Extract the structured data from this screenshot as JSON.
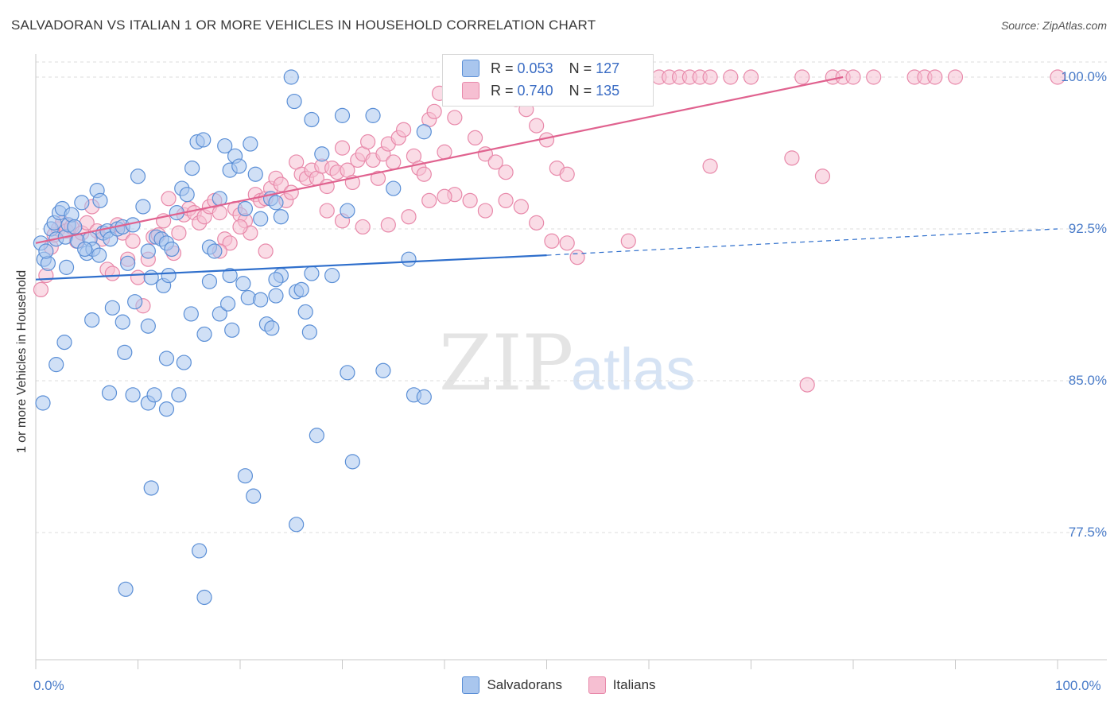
{
  "title": "SALVADORAN VS ITALIAN 1 OR MORE VEHICLES IN HOUSEHOLD CORRELATION CHART",
  "source": "Source: ZipAtlas.com",
  "watermark": {
    "zip": "ZIP",
    "atlas": "atlas"
  },
  "colors": {
    "blue_fill": "#a9c6ee",
    "blue_stroke": "#5b8fd6",
    "blue_line": "#2f6fcc",
    "pink_fill": "#f6bfd2",
    "pink_stroke": "#e889aa",
    "pink_line": "#e0628f",
    "grid": "#dddddd",
    "tick_text": "#4a7cc9"
  },
  "legend": {
    "rows": [
      {
        "r_label": "R =",
        "r_value": "0.053",
        "n_label": "N =",
        "n_value": "127"
      },
      {
        "r_label": "R =",
        "r_value": "0.740",
        "n_label": "N =",
        "n_value": "135"
      }
    ]
  },
  "bottom_legend": [
    "Salvadorans",
    "Italians"
  ],
  "chart_data": {
    "type": "scatter",
    "title": "SALVADORAN VS ITALIAN 1 OR MORE VEHICLES IN HOUSEHOLD CORRELATION CHART",
    "xlabel": "",
    "ylabel": "1 or more Vehicles in Household",
    "xlim": [
      0,
      100
    ],
    "ylim": [
      70.5,
      101.2
    ],
    "x_tick_labels": [
      "0.0%",
      "100.0%"
    ],
    "y_ticks": [
      {
        "value": 100.0,
        "label": "100.0%"
      },
      {
        "value": 92.5,
        "label": "92.5%"
      },
      {
        "value": 85.0,
        "label": "85.0%"
      },
      {
        "value": 77.5,
        "label": "77.5%"
      }
    ],
    "grid": true,
    "series": [
      {
        "name": "Salvadorans",
        "color": "blue",
        "R": 0.053,
        "N": 127,
        "trend": {
          "x0": 0,
          "y0": 90.0,
          "x1": 50,
          "y1": 91.2,
          "dash_to_x": 100,
          "dash_to_y": 92.5
        },
        "points": [
          [
            0.5,
            91.8
          ],
          [
            0.8,
            91.0
          ],
          [
            1.2,
            90.8
          ],
          [
            1.5,
            92.5
          ],
          [
            1.8,
            92.8
          ],
          [
            2.0,
            92.0
          ],
          [
            2.3,
            93.3
          ],
          [
            2.6,
            93.5
          ],
          [
            2.9,
            92.1
          ],
          [
            3.2,
            92.7
          ],
          [
            3.5,
            93.2
          ],
          [
            3.8,
            92.6
          ],
          [
            4.1,
            91.9
          ],
          [
            4.5,
            93.8
          ],
          [
            5.0,
            91.3
          ],
          [
            5.3,
            92.0
          ],
          [
            5.6,
            91.5
          ],
          [
            6.0,
            94.4
          ],
          [
            6.3,
            93.9
          ],
          [
            6.6,
            92.3
          ],
          [
            7.0,
            92.4
          ],
          [
            7.3,
            92.0
          ],
          [
            8.0,
            92.5
          ],
          [
            8.5,
            92.6
          ],
          [
            9.0,
            90.8
          ],
          [
            9.5,
            92.7
          ],
          [
            10.0,
            95.1
          ],
          [
            10.5,
            93.6
          ],
          [
            11.0,
            91.4
          ],
          [
            11.3,
            90.1
          ],
          [
            11.8,
            92.1
          ],
          [
            12.3,
            92.0
          ],
          [
            12.8,
            91.8
          ],
          [
            13.3,
            91.5
          ],
          [
            13.8,
            93.3
          ],
          [
            14.3,
            94.5
          ],
          [
            14.8,
            94.2
          ],
          [
            15.3,
            95.5
          ],
          [
            15.8,
            96.8
          ],
          [
            16.4,
            96.9
          ],
          [
            17.0,
            91.6
          ],
          [
            17.5,
            91.4
          ],
          [
            18.0,
            94.0
          ],
          [
            18.5,
            96.6
          ],
          [
            19.0,
            95.4
          ],
          [
            19.5,
            96.1
          ],
          [
            19.9,
            95.6
          ],
          [
            20.5,
            93.5
          ],
          [
            21.0,
            96.7
          ],
          [
            21.5,
            95.2
          ],
          [
            22.0,
            93.0
          ],
          [
            23.0,
            94.0
          ],
          [
            23.5,
            93.8
          ],
          [
            24.0,
            93.1
          ],
          [
            25.0,
            100.0
          ],
          [
            25.3,
            98.8
          ],
          [
            27.0,
            97.9
          ],
          [
            28.0,
            96.2
          ],
          [
            30.0,
            98.1
          ],
          [
            30.5,
            93.4
          ],
          [
            33.0,
            98.1
          ],
          [
            35.0,
            94.5
          ],
          [
            38.0,
            97.3
          ],
          [
            7.5,
            88.6
          ],
          [
            9.7,
            88.9
          ],
          [
            11.0,
            87.7
          ],
          [
            8.5,
            87.9
          ],
          [
            8.7,
            86.4
          ],
          [
            5.5,
            88.0
          ],
          [
            2.8,
            86.9
          ],
          [
            2.0,
            85.8
          ],
          [
            0.7,
            83.9
          ],
          [
            7.2,
            84.4
          ],
          [
            9.5,
            84.3
          ],
          [
            11.0,
            83.9
          ],
          [
            11.6,
            84.3
          ],
          [
            12.8,
            86.1
          ],
          [
            14.5,
            85.9
          ],
          [
            14.0,
            84.3
          ],
          [
            12.8,
            83.6
          ],
          [
            15.2,
            88.3
          ],
          [
            16.5,
            87.3
          ],
          [
            18.0,
            88.3
          ],
          [
            18.8,
            88.8
          ],
          [
            19.2,
            87.5
          ],
          [
            20.3,
            89.8
          ],
          [
            20.8,
            89.1
          ],
          [
            22.0,
            89.0
          ],
          [
            22.6,
            87.8
          ],
          [
            23.1,
            87.6
          ],
          [
            23.5,
            89.2
          ],
          [
            24.0,
            90.2
          ],
          [
            25.5,
            89.4
          ],
          [
            26.4,
            88.4
          ],
          [
            26.8,
            87.4
          ],
          [
            27.0,
            90.3
          ],
          [
            30.5,
            85.4
          ],
          [
            34.0,
            85.5
          ],
          [
            37.0,
            84.3
          ],
          [
            38.0,
            84.2
          ],
          [
            36.5,
            91.0
          ],
          [
            27.5,
            82.3
          ],
          [
            31.0,
            81.0
          ],
          [
            20.5,
            80.3
          ],
          [
            21.3,
            79.3
          ],
          [
            11.3,
            79.7
          ],
          [
            25.5,
            77.9
          ],
          [
            16.0,
            76.6
          ],
          [
            8.8,
            74.7
          ],
          [
            16.5,
            74.3
          ],
          [
            12.5,
            89.7
          ],
          [
            13.0,
            90.2
          ],
          [
            17.0,
            89.9
          ],
          [
            19.0,
            90.2
          ],
          [
            23.5,
            90.0
          ],
          [
            26.0,
            89.5
          ],
          [
            6.2,
            91.2
          ],
          [
            4.8,
            91.5
          ],
          [
            3.0,
            90.6
          ],
          [
            1.0,
            91.4
          ],
          [
            29.0,
            90.2
          ]
        ]
      },
      {
        "name": "Italians",
        "color": "pink",
        "R": 0.74,
        "N": 135,
        "trend": {
          "x0": 0,
          "y0": 91.8,
          "x1": 79,
          "y1": 100.0
        },
        "points": [
          [
            0.5,
            89.5
          ],
          [
            1.0,
            90.2
          ],
          [
            1.5,
            91.6
          ],
          [
            1.8,
            92.2
          ],
          [
            2.2,
            92.5
          ],
          [
            2.6,
            92.8
          ],
          [
            3.0,
            92.4
          ],
          [
            3.5,
            92.6
          ],
          [
            4.0,
            91.9
          ],
          [
            4.5,
            92.3
          ],
          [
            5.0,
            92.8
          ],
          [
            5.5,
            93.6
          ],
          [
            6.0,
            92.4
          ],
          [
            6.5,
            92.0
          ],
          [
            7.0,
            90.5
          ],
          [
            7.5,
            90.3
          ],
          [
            8.0,
            92.7
          ],
          [
            8.5,
            92.3
          ],
          [
            9.0,
            91.0
          ],
          [
            9.5,
            91.9
          ],
          [
            10.0,
            90.1
          ],
          [
            10.5,
            88.7
          ],
          [
            11.0,
            91.0
          ],
          [
            11.5,
            92.1
          ],
          [
            12.0,
            92.2
          ],
          [
            12.5,
            92.9
          ],
          [
            13.0,
            94.0
          ],
          [
            13.5,
            91.3
          ],
          [
            14.0,
            92.3
          ],
          [
            14.5,
            93.2
          ],
          [
            15.0,
            93.5
          ],
          [
            15.5,
            93.3
          ],
          [
            16.0,
            92.8
          ],
          [
            16.5,
            93.1
          ],
          [
            17.0,
            93.6
          ],
          [
            17.5,
            93.9
          ],
          [
            18.0,
            93.3
          ],
          [
            18.5,
            92.0
          ],
          [
            19.0,
            91.8
          ],
          [
            19.5,
            93.5
          ],
          [
            20.0,
            93.2
          ],
          [
            20.5,
            92.9
          ],
          [
            21.0,
            92.3
          ],
          [
            21.5,
            94.2
          ],
          [
            22.0,
            93.9
          ],
          [
            22.5,
            94.0
          ],
          [
            23.0,
            94.5
          ],
          [
            23.5,
            95.0
          ],
          [
            24.0,
            94.7
          ],
          [
            24.5,
            93.9
          ],
          [
            25.0,
            94.3
          ],
          [
            25.5,
            95.8
          ],
          [
            26.0,
            95.2
          ],
          [
            26.5,
            95.0
          ],
          [
            27.0,
            95.4
          ],
          [
            27.5,
            95.0
          ],
          [
            28.0,
            95.6
          ],
          [
            28.5,
            94.6
          ],
          [
            29.0,
            95.5
          ],
          [
            29.5,
            95.3
          ],
          [
            30.0,
            96.5
          ],
          [
            30.5,
            95.4
          ],
          [
            31.0,
            94.8
          ],
          [
            31.5,
            95.9
          ],
          [
            32.0,
            96.2
          ],
          [
            32.5,
            96.8
          ],
          [
            33.0,
            95.9
          ],
          [
            33.5,
            95.0
          ],
          [
            34.0,
            96.2
          ],
          [
            34.5,
            96.7
          ],
          [
            35.0,
            95.8
          ],
          [
            35.5,
            97.0
          ],
          [
            36.0,
            97.4
          ],
          [
            37.0,
            96.1
          ],
          [
            37.5,
            95.5
          ],
          [
            38.0,
            95.2
          ],
          [
            38.5,
            97.9
          ],
          [
            39.0,
            98.3
          ],
          [
            39.5,
            99.2
          ],
          [
            40.0,
            96.3
          ],
          [
            41.0,
            98.0
          ],
          [
            42.0,
            99.1
          ],
          [
            43.0,
            97.0
          ],
          [
            44.0,
            96.2
          ],
          [
            45.0,
            95.8
          ],
          [
            46.0,
            95.3
          ],
          [
            47.0,
            98.9
          ],
          [
            48.0,
            98.4
          ],
          [
            49.0,
            97.6
          ],
          [
            50.0,
            96.9
          ],
          [
            51.0,
            95.5
          ],
          [
            52.0,
            95.2
          ],
          [
            53.0,
            100.0
          ],
          [
            55.0,
            100.0
          ],
          [
            57.0,
            100.0
          ],
          [
            59.0,
            100.0
          ],
          [
            61.0,
            100.0
          ],
          [
            62.0,
            100.0
          ],
          [
            63.0,
            100.0
          ],
          [
            64.0,
            100.0
          ],
          [
            65.0,
            100.0
          ],
          [
            66.0,
            100.0
          ],
          [
            68.0,
            100.0
          ],
          [
            70.0,
            100.0
          ],
          [
            75.0,
            100.0
          ],
          [
            78.0,
            100.0
          ],
          [
            79.0,
            100.0
          ],
          [
            80.0,
            100.0
          ],
          [
            82.0,
            100.0
          ],
          [
            86.0,
            100.0
          ],
          [
            87.0,
            100.0
          ],
          [
            88.0,
            100.0
          ],
          [
            90.0,
            100.0
          ],
          [
            100.0,
            100.0
          ],
          [
            41.0,
            94.2
          ],
          [
            42.5,
            93.9
          ],
          [
            44.0,
            93.4
          ],
          [
            46.0,
            93.9
          ],
          [
            47.5,
            93.6
          ],
          [
            49.0,
            92.8
          ],
          [
            50.5,
            91.9
          ],
          [
            52.0,
            91.8
          ],
          [
            53.0,
            91.1
          ],
          [
            58.0,
            91.9
          ],
          [
            66.0,
            95.6
          ],
          [
            74.0,
            96.0
          ],
          [
            77.0,
            95.1
          ],
          [
            75.5,
            84.8
          ],
          [
            34.5,
            92.7
          ],
          [
            36.5,
            93.1
          ],
          [
            38.5,
            93.9
          ],
          [
            40.0,
            94.1
          ],
          [
            28.5,
            93.4
          ],
          [
            30.0,
            92.9
          ],
          [
            32.0,
            92.6
          ],
          [
            22.5,
            91.4
          ],
          [
            20.0,
            92.6
          ],
          [
            18.0,
            91.4
          ]
        ]
      }
    ]
  }
}
